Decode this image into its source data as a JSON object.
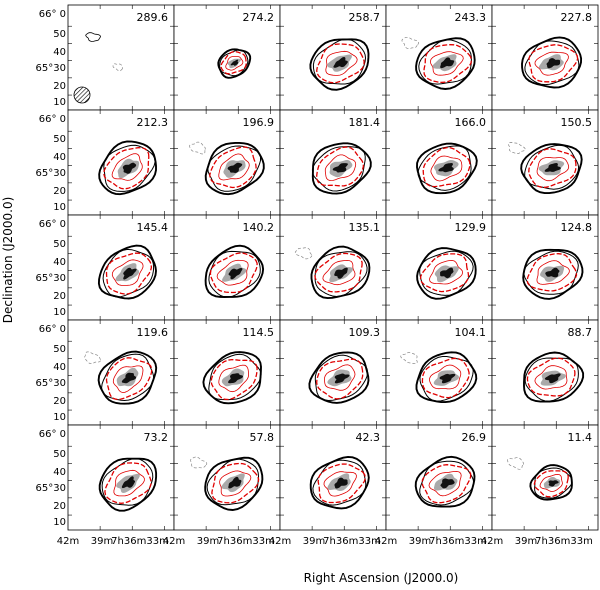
{
  "figure": {
    "x_axis_title": "Right Ascension (J2000.0)",
    "y_axis_title": "Declination (J2000.0)",
    "dec_tick_labels": [
      "66° 0",
      "50",
      "40",
      "65°30",
      "20",
      "10"
    ],
    "ra_tick_labels": [
      "42m",
      "39m",
      "7h36m33m"
    ],
    "panel_velocities": [
      "289.6",
      "274.2",
      "258.7",
      "243.3",
      "227.8",
      "212.3",
      "196.9",
      "181.4",
      "166.0",
      "150.5",
      "145.4",
      "140.2",
      "135.1",
      "129.9",
      "124.8",
      "119.6",
      "114.5",
      "109.3",
      "104.1",
      "88.7",
      "73.2",
      "57.8",
      "42.3",
      "26.9",
      "11.4"
    ],
    "colors": {
      "contour_black": "#000000",
      "contour_red": "#e00000",
      "negative_contour": "#888888",
      "core_dark": "#111111",
      "core_grey": "#9a9a9a"
    },
    "beam_icon": "hatched-ellipse-beam"
  }
}
